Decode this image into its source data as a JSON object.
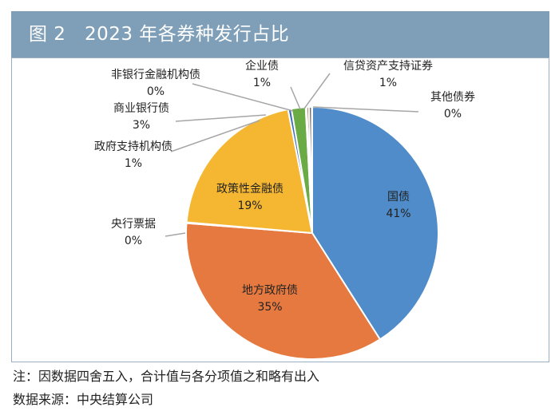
{
  "figure": {
    "title": "图 2　2023 年各券种发行占比",
    "note": "注：因数据四舍五入，合计值与各分项值之和略有出入",
    "source": "数据来源：中央结算公司"
  },
  "colors": {
    "title_bar": "#7f9fb8",
    "frame": "#9ab0c2",
    "guo_zhai": "#4f8cc9",
    "difang": "#e5793f",
    "yangxing": "#a5a5a5",
    "zhengce": "#f5b731",
    "zhengfu_zhichi": "#3e6fb5",
    "shangye": "#6aab46",
    "fei_yinhang": "#2a4a7a",
    "qiye": "#9c4a1e",
    "xindai": "#6d6d6d",
    "qita": "#a8a8a8"
  },
  "chart_data": {
    "type": "pie",
    "title": "2023 年各券种发行占比",
    "unit": "%",
    "slices": [
      {
        "label": "国债",
        "value": 41,
        "display": "41%"
      },
      {
        "label": "地方政府债",
        "value": 35,
        "display": "35%"
      },
      {
        "label": "央行票据",
        "value": 0,
        "display": "0%"
      },
      {
        "label": "政策性金融债",
        "value": 19,
        "display": "19%"
      },
      {
        "label": "政府支持机构债",
        "value": 1,
        "display": "1%"
      },
      {
        "label": "商业银行债",
        "value": 3,
        "display": "3%"
      },
      {
        "label": "非银行金融机构债",
        "value": 0,
        "display": "0%"
      },
      {
        "label": "企业债",
        "value": 1,
        "display": "1%"
      },
      {
        "label": "信贷资产支持证券",
        "value": 1,
        "display": "1%"
      },
      {
        "label": "其他债券",
        "value": 0,
        "display": "0%"
      }
    ]
  }
}
